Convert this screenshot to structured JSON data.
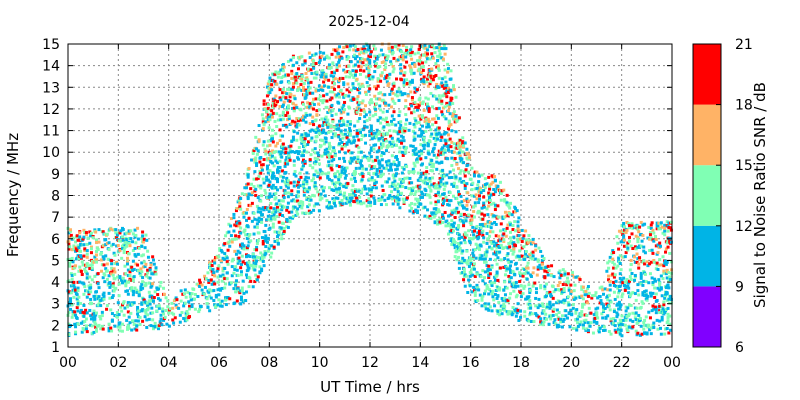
{
  "chart_data": {
    "type": "heatmap",
    "title": "2025-12-04",
    "xlabel": "UT Time / hrs",
    "ylabel": "Frequency / MHz",
    "colorbar_label": "Signal to Noise Ratio SNR / dB",
    "xlim": [
      0,
      24
    ],
    "ylim": [
      1,
      15
    ],
    "x_ticks": [
      "00",
      "02",
      "04",
      "06",
      "08",
      "10",
      "12",
      "14",
      "16",
      "18",
      "20",
      "22",
      "00"
    ],
    "y_ticks": [
      "1",
      "2",
      "3",
      "4",
      "5",
      "6",
      "7",
      "8",
      "9",
      "10",
      "11",
      "12",
      "13",
      "14",
      "15"
    ],
    "grid": true,
    "colorbar": {
      "ticks": [
        "6",
        "9",
        "12",
        "15",
        "18",
        "21"
      ],
      "bands": [
        {
          "range": [
            6,
            9
          ],
          "color": "#8000ff"
        },
        {
          "range": [
            9,
            12
          ],
          "color": "#00b4e6"
        },
        {
          "range": [
            12,
            15
          ],
          "color": "#80ffb4"
        },
        {
          "range": [
            15,
            18
          ],
          "color": "#ffb366"
        },
        {
          "range": [
            18,
            21
          ],
          "color": "#ff0000"
        }
      ]
    },
    "data_envelope": [
      {
        "time": 0.0,
        "fmin": 1.5,
        "fmax": 6.5
      },
      {
        "time": 3.0,
        "fmin": 1.8,
        "fmax": 6.5
      },
      {
        "time": 4.0,
        "fmin": 1.8,
        "fmax": 3.2
      },
      {
        "time": 5.0,
        "fmin": 2.4,
        "fmax": 4.0
      },
      {
        "time": 6.0,
        "fmin": 2.8,
        "fmax": 5.5
      },
      {
        "time": 7.0,
        "fmin": 3.0,
        "fmax": 8.5
      },
      {
        "time": 8.0,
        "fmin": 5.0,
        "fmax": 13.5
      },
      {
        "time": 9.0,
        "fmin": 7.0,
        "fmax": 14.5
      },
      {
        "time": 11.0,
        "fmin": 7.5,
        "fmax": 15.0
      },
      {
        "time": 13.0,
        "fmin": 7.5,
        "fmax": 15.0
      },
      {
        "time": 15.0,
        "fmin": 6.5,
        "fmax": 15.0
      },
      {
        "time": 16.0,
        "fmin": 3.0,
        "fmax": 9.5
      },
      {
        "time": 17.0,
        "fmin": 2.5,
        "fmax": 9.0
      },
      {
        "time": 18.0,
        "fmin": 2.2,
        "fmax": 7.0
      },
      {
        "time": 19.0,
        "fmin": 2.0,
        "fmax": 5.0
      },
      {
        "time": 20.0,
        "fmin": 1.8,
        "fmax": 4.5
      },
      {
        "time": 21.0,
        "fmin": 1.6,
        "fmax": 3.5
      },
      {
        "time": 22.0,
        "fmin": 1.5,
        "fmax": 6.8
      },
      {
        "time": 24.0,
        "fmin": 1.5,
        "fmax": 6.8
      }
    ]
  }
}
